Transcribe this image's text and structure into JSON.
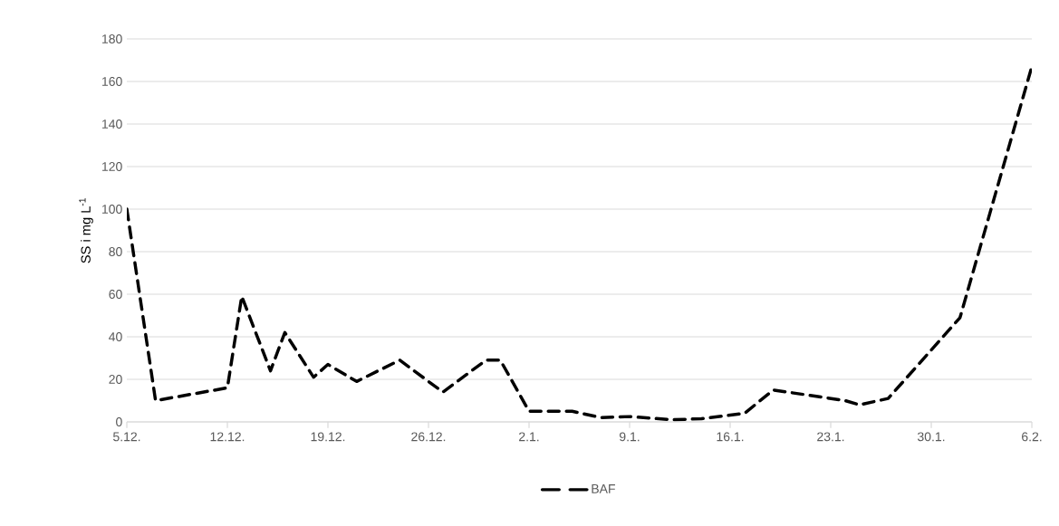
{
  "chart_data": {
    "type": "line",
    "ylabel": "SS i mg L$^{-1}$",
    "categories": [
      "5.12.",
      null,
      null,
      null,
      null,
      null,
      null,
      "12.12.",
      null,
      null,
      null,
      null,
      null,
      null,
      "19.12.",
      null,
      null,
      null,
      null,
      null,
      null,
      "26.12.",
      null,
      null,
      null,
      null,
      null,
      null,
      "2.1.",
      null,
      null,
      null,
      null,
      null,
      null,
      "9.1.",
      null,
      null,
      null,
      null,
      null,
      null,
      "16.1.",
      null,
      null,
      null,
      null,
      null,
      null,
      "23.1.",
      null,
      null,
      null,
      null,
      null,
      null,
      "30.1.",
      null,
      null,
      null,
      null,
      null,
      null,
      "6.2."
    ],
    "series": [
      {
        "name": "BAF",
        "color": "#000000",
        "values": [
          100,
          null,
          10,
          null,
          null,
          null,
          null,
          16,
          59,
          null,
          24,
          42,
          null,
          21,
          27,
          null,
          19,
          null,
          null,
          29,
          null,
          null,
          14,
          null,
          null,
          29,
          29,
          null,
          5,
          null,
          null,
          5,
          null,
          2,
          null,
          2.5,
          null,
          null,
          1,
          null,
          1.5,
          null,
          null,
          4,
          null,
          15,
          null,
          null,
          12,
          null,
          10,
          8,
          null,
          11,
          null,
          null,
          null,
          null,
          49,
          null,
          null,
          null,
          null,
          167
        ]
      }
    ],
    "ylim": [
      0,
      180
    ],
    "yticks": [
      0,
      20,
      40,
      60,
      80,
      100,
      120,
      140,
      160,
      180
    ],
    "grid": "y",
    "legend": "bottom",
    "marker": "none",
    "line_style": "dashed"
  }
}
